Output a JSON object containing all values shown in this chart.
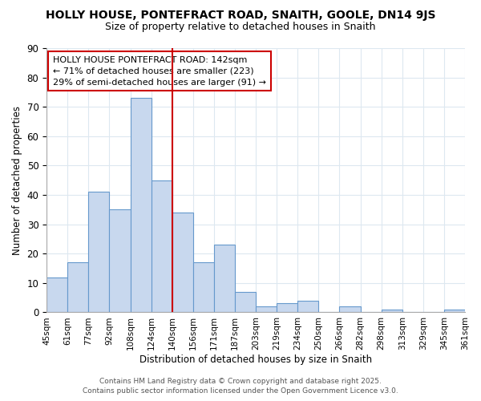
{
  "title_line1": "HOLLY HOUSE, PONTEFRACT ROAD, SNAITH, GOOLE, DN14 9JS",
  "title_line2": "Size of property relative to detached houses in Snaith",
  "xlabel": "Distribution of detached houses by size in Snaith",
  "ylabel": "Number of detached properties",
  "annotation_line1": "HOLLY HOUSE PONTEFRACT ROAD: 142sqm",
  "annotation_line2": "← 71% of detached houses are smaller (223)",
  "annotation_line3": "29% of semi-detached houses are larger (91) →",
  "bin_labels": [
    "45sqm",
    "61sqm",
    "77sqm",
    "92sqm",
    "108sqm",
    "124sqm",
    "140sqm",
    "156sqm",
    "171sqm",
    "187sqm",
    "203sqm",
    "219sqm",
    "234sqm",
    "250sqm",
    "266sqm",
    "282sqm",
    "298sqm",
    "313sqm",
    "329sqm",
    "345sqm",
    "361sqm"
  ],
  "bar_values": [
    12,
    17,
    41,
    35,
    73,
    45,
    34,
    17,
    23,
    7,
    2,
    3,
    4,
    0,
    2,
    0,
    1,
    0,
    0,
    1
  ],
  "bar_color": "#c8d8ee",
  "bar_edge_color": "#6699cc",
  "vline_x": 6,
  "vline_color": "#cc0000",
  "annotation_box_edge_color": "#cc0000",
  "ylim": [
    0,
    90
  ],
  "yticks": [
    0,
    10,
    20,
    30,
    40,
    50,
    60,
    70,
    80,
    90
  ],
  "grid_color": "#dde8f0",
  "bg_color": "#ffffff",
  "fig_bg_color": "#ffffff",
  "footer1": "Contains HM Land Registry data © Crown copyright and database right 2025.",
  "footer2": "Contains public sector information licensed under the Open Government Licence v3.0."
}
